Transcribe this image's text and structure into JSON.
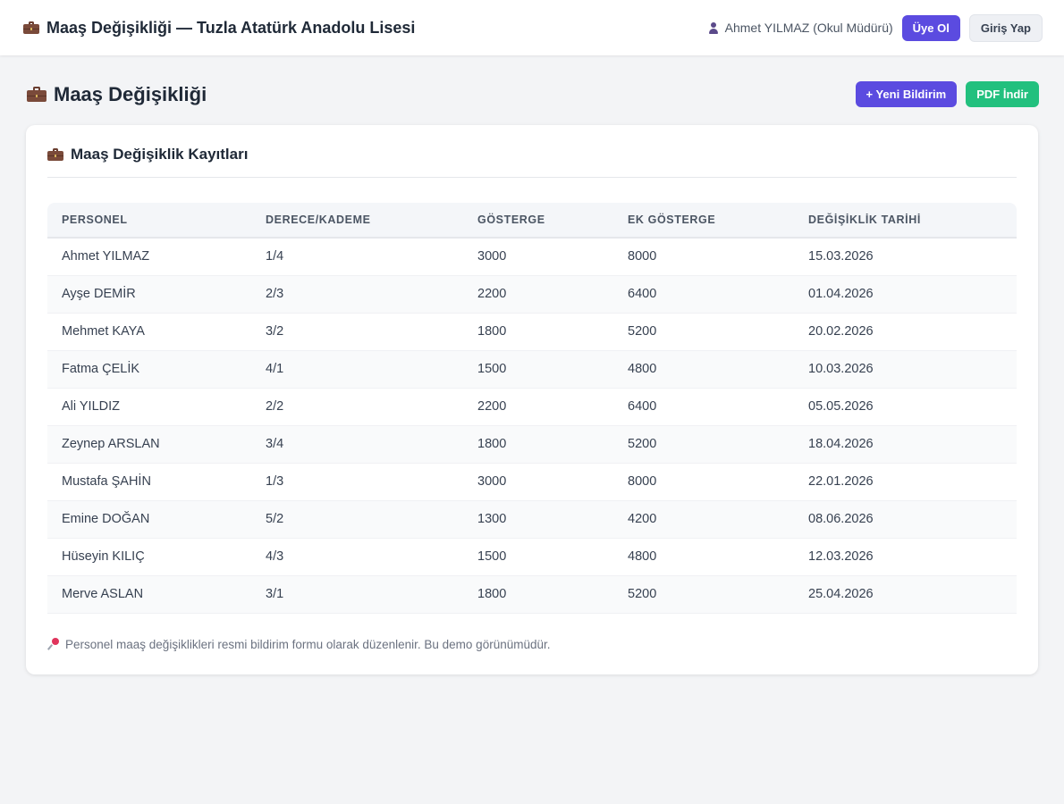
{
  "topbar": {
    "title": "Maaş Değişikliği — Tuzla Atatürk Anadolu Lisesi",
    "user_label": "Ahmet YILMAZ (Okul Müdürü)",
    "signup_label": "Üye Ol",
    "login_label": "Giriş Yap"
  },
  "page": {
    "title": "Maaş Değişikliği",
    "new_button": "+ Yeni Bildirim",
    "pdf_button": "PDF İndir"
  },
  "card": {
    "title": "Maaş Değişiklik Kayıtları",
    "note": "Personel maaş değişiklikleri resmi bildirim formu olarak düzenlenir. Bu demo görünümüdür."
  },
  "table": {
    "headers": [
      "PERSONEL",
      "DERECE/KADEME",
      "GÖSTERGE",
      "EK GÖSTERGE",
      "DEĞİŞİKLİK TARİHİ"
    ],
    "rows": [
      [
        "Ahmet YILMAZ",
        "1/4",
        "3000",
        "8000",
        "15.03.2026"
      ],
      [
        "Ayşe DEMİR",
        "2/3",
        "2200",
        "6400",
        "01.04.2026"
      ],
      [
        "Mehmet KAYA",
        "3/2",
        "1800",
        "5200",
        "20.02.2026"
      ],
      [
        "Fatma ÇELİK",
        "4/1",
        "1500",
        "4800",
        "10.03.2026"
      ],
      [
        "Ali YILDIZ",
        "2/2",
        "2200",
        "6400",
        "05.05.2026"
      ],
      [
        "Zeynep ARSLAN",
        "3/4",
        "1800",
        "5200",
        "18.04.2026"
      ],
      [
        "Mustafa ŞAHİN",
        "1/3",
        "3000",
        "8000",
        "22.01.2026"
      ],
      [
        "Emine DOĞAN",
        "5/2",
        "1300",
        "4200",
        "08.06.2026"
      ],
      [
        "Hüseyin KILIÇ",
        "4/3",
        "1500",
        "4800",
        "12.03.2026"
      ],
      [
        "Merve ASLAN",
        "3/1",
        "1800",
        "5200",
        "25.04.2026"
      ]
    ]
  },
  "icons": {
    "title": "briefcase-icon",
    "user": "user-icon",
    "note": "pushpin-icon"
  },
  "colors": {
    "primary": "#5b4be0",
    "success": "#22c07e"
  }
}
